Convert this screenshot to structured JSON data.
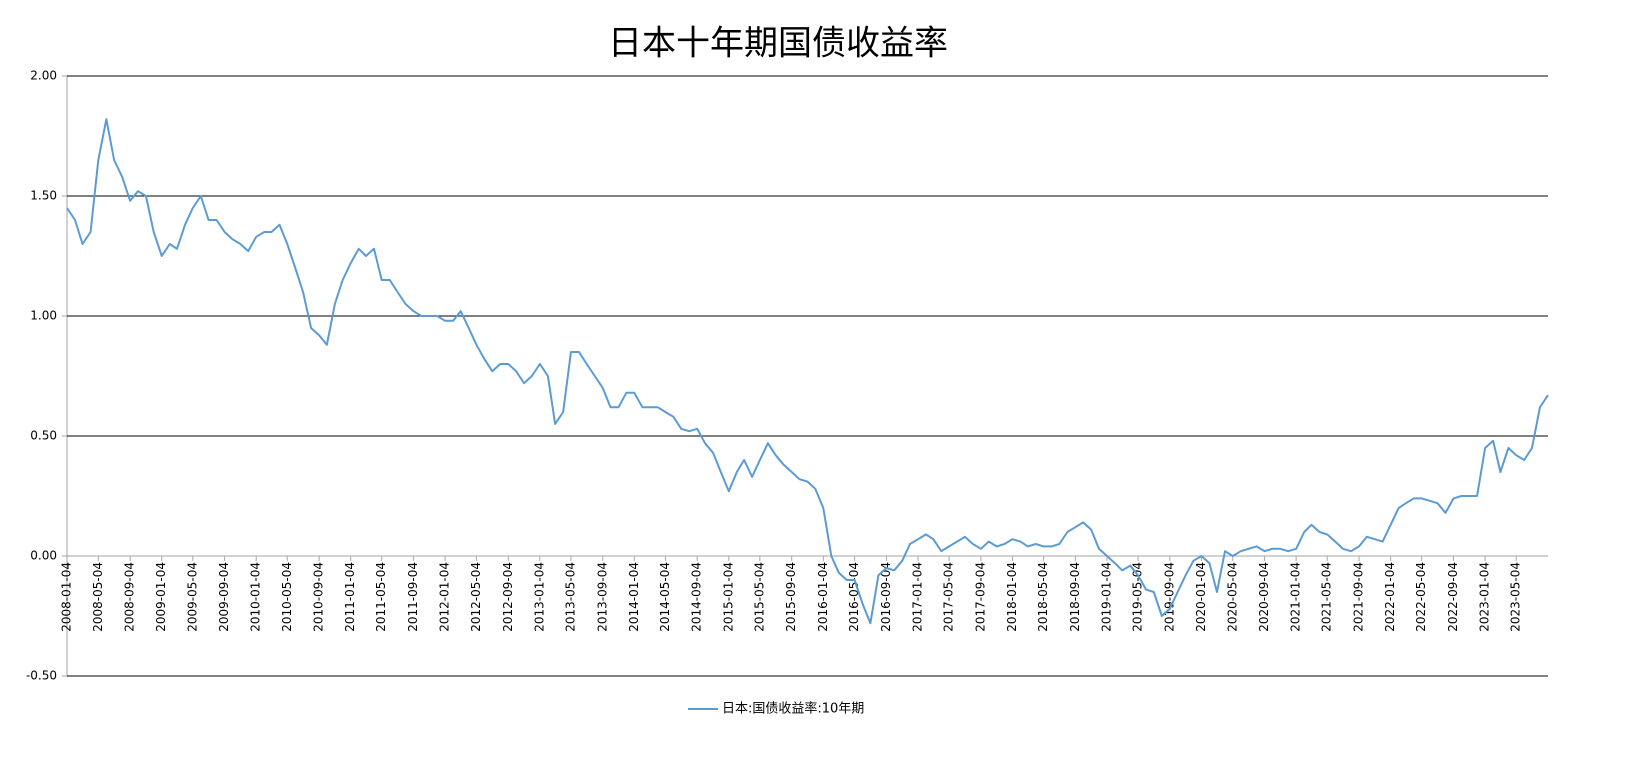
{
  "chart_data": {
    "type": "line",
    "title": "日本十年期国债收益率",
    "x": [
      "2008-01-04",
      "2008-02-04",
      "2008-03-04",
      "2008-04-04",
      "2008-05-04",
      "2008-06-04",
      "2008-07-04",
      "2008-08-04",
      "2008-09-04",
      "2008-10-04",
      "2008-11-04",
      "2008-12-04",
      "2009-01-04",
      "2009-02-04",
      "2009-03-04",
      "2009-04-04",
      "2009-05-04",
      "2009-06-04",
      "2009-07-04",
      "2009-08-04",
      "2009-09-04",
      "2009-10-04",
      "2009-11-04",
      "2009-12-04",
      "2010-01-04",
      "2010-02-04",
      "2010-03-04",
      "2010-04-04",
      "2010-05-04",
      "2010-06-04",
      "2010-07-04",
      "2010-08-04",
      "2010-09-04",
      "2010-10-04",
      "2010-11-04",
      "2010-12-04",
      "2011-01-04",
      "2011-02-04",
      "2011-03-04",
      "2011-04-04",
      "2011-05-04",
      "2011-06-04",
      "2011-07-04",
      "2011-08-04",
      "2011-09-04",
      "2011-10-04",
      "2011-11-04",
      "2011-12-04",
      "2012-01-04",
      "2012-02-04",
      "2012-03-04",
      "2012-04-04",
      "2012-05-04",
      "2012-06-04",
      "2012-07-04",
      "2012-08-04",
      "2012-09-04",
      "2012-10-04",
      "2012-11-04",
      "2012-12-04",
      "2013-01-04",
      "2013-02-04",
      "2013-03-04",
      "2013-04-04",
      "2013-05-04",
      "2013-06-04",
      "2013-07-04",
      "2013-08-04",
      "2013-09-04",
      "2013-10-04",
      "2013-11-04",
      "2013-12-04",
      "2014-01-04",
      "2014-02-04",
      "2014-03-04",
      "2014-04-04",
      "2014-05-04",
      "2014-06-04",
      "2014-07-04",
      "2014-08-04",
      "2014-09-04",
      "2014-10-04",
      "2014-11-04",
      "2014-12-04",
      "2015-01-04",
      "2015-02-04",
      "2015-03-04",
      "2015-04-04",
      "2015-05-04",
      "2015-06-04",
      "2015-07-04",
      "2015-08-04",
      "2015-09-04",
      "2015-10-04",
      "2015-11-04",
      "2015-12-04",
      "2016-01-04",
      "2016-02-04",
      "2016-03-04",
      "2016-04-04",
      "2016-05-04",
      "2016-06-04",
      "2016-07-04",
      "2016-08-04",
      "2016-09-04",
      "2016-10-04",
      "2016-11-04",
      "2016-12-04",
      "2017-01-04",
      "2017-02-04",
      "2017-03-04",
      "2017-04-04",
      "2017-05-04",
      "2017-06-04",
      "2017-07-04",
      "2017-08-04",
      "2017-09-04",
      "2017-10-04",
      "2017-11-04",
      "2017-12-04",
      "2018-01-04",
      "2018-02-04",
      "2018-03-04",
      "2018-04-04",
      "2018-05-04",
      "2018-06-04",
      "2018-07-04",
      "2018-08-04",
      "2018-09-04",
      "2018-10-04",
      "2018-11-04",
      "2018-12-04",
      "2019-01-04",
      "2019-02-04",
      "2019-03-04",
      "2019-04-04",
      "2019-05-04",
      "2019-06-04",
      "2019-07-04",
      "2019-08-04",
      "2019-09-04",
      "2019-10-04",
      "2019-11-04",
      "2019-12-04",
      "2020-01-04",
      "2020-02-04",
      "2020-03-04",
      "2020-04-04",
      "2020-05-04",
      "2020-06-04",
      "2020-07-04",
      "2020-08-04",
      "2020-09-04",
      "2020-10-04",
      "2020-11-04",
      "2020-12-04",
      "2021-01-04",
      "2021-02-04",
      "2021-03-04",
      "2021-04-04",
      "2021-05-04",
      "2021-06-04",
      "2021-07-04",
      "2021-08-04",
      "2021-09-04",
      "2021-10-04",
      "2021-11-04",
      "2021-12-04",
      "2022-01-04",
      "2022-02-04",
      "2022-03-04",
      "2022-04-04",
      "2022-05-04",
      "2022-06-04",
      "2022-07-04",
      "2022-08-04",
      "2022-09-04",
      "2022-10-04",
      "2022-11-04",
      "2022-12-04",
      "2023-01-04",
      "2023-02-04",
      "2023-03-04",
      "2023-04-04",
      "2023-05-04",
      "2023-06-04",
      "2023-07-04",
      "2023-08-04",
      "2023-09-04"
    ],
    "series": [
      {
        "name": "日本:国债收益率:10年期",
        "color": "#5b9bd5",
        "values": [
          1.45,
          1.4,
          1.3,
          1.35,
          1.65,
          1.82,
          1.65,
          1.58,
          1.48,
          1.52,
          1.5,
          1.35,
          1.25,
          1.3,
          1.28,
          1.38,
          1.45,
          1.5,
          1.4,
          1.4,
          1.35,
          1.32,
          1.3,
          1.27,
          1.33,
          1.35,
          1.35,
          1.38,
          1.3,
          1.2,
          1.1,
          0.95,
          0.92,
          0.88,
          1.05,
          1.15,
          1.22,
          1.28,
          1.25,
          1.28,
          1.15,
          1.15,
          1.1,
          1.05,
          1.02,
          1.0,
          1.0,
          1.0,
          0.98,
          0.98,
          1.02,
          0.95,
          0.88,
          0.82,
          0.77,
          0.8,
          0.8,
          0.77,
          0.72,
          0.75,
          0.8,
          0.75,
          0.55,
          0.6,
          0.85,
          0.85,
          0.8,
          0.75,
          0.7,
          0.62,
          0.62,
          0.68,
          0.68,
          0.62,
          0.62,
          0.62,
          0.6,
          0.58,
          0.53,
          0.52,
          0.53,
          0.47,
          0.43,
          0.35,
          0.27,
          0.35,
          0.4,
          0.33,
          0.4,
          0.47,
          0.42,
          0.38,
          0.35,
          0.32,
          0.31,
          0.28,
          0.2,
          0,
          -0.07,
          -0.1,
          -0.1,
          -0.2,
          -0.28,
          -0.08,
          -0.05,
          -0.06,
          -0.02,
          0.05,
          0.07,
          0.09,
          0.07,
          0.02,
          0.04,
          0.06,
          0.08,
          0.05,
          0.03,
          0.06,
          0.04,
          0.05,
          0.07,
          0.06,
          0.04,
          0.05,
          0.04,
          0.04,
          0.05,
          0.1,
          0.12,
          0.14,
          0.11,
          0.03,
          0,
          -0.03,
          -0.06,
          -0.04,
          -0.08,
          -0.14,
          -0.15,
          -0.25,
          -0.22,
          -0.15,
          -0.08,
          -0.02,
          0,
          -0.03,
          -0.15,
          0.02,
          0,
          0.02,
          0.03,
          0.04,
          0.02,
          0.03,
          0.03,
          0.02,
          0.03,
          0.1,
          0.13,
          0.1,
          0.09,
          0.06,
          0.03,
          0.02,
          0.04,
          0.08,
          0.07,
          0.06,
          0.13,
          0.2,
          0.22,
          0.24,
          0.24,
          0.23,
          0.22,
          0.18,
          0.24,
          0.25,
          0.25,
          0.25,
          0.45,
          0.48,
          0.35,
          0.45,
          0.42,
          0.4,
          0.45,
          0.62,
          0.67
        ]
      }
    ],
    "xlim": [
      "2008-01-04",
      "2023-09-04"
    ],
    "xticks": [
      "2008-01-04",
      "2008-05-04",
      "2008-09-04",
      "2009-01-04",
      "2009-05-04",
      "2009-09-04",
      "2010-01-04",
      "2010-05-04",
      "2010-09-04",
      "2011-01-04",
      "2011-05-04",
      "2011-09-04",
      "2012-01-04",
      "2012-05-04",
      "2012-09-04",
      "2013-01-04",
      "2013-05-04",
      "2013-09-04",
      "2014-01-04",
      "2014-05-04",
      "2014-09-04",
      "2015-01-04",
      "2015-05-04",
      "2015-09-04",
      "2016-01-04",
      "2016-05-04",
      "2016-09-04",
      "2017-01-04",
      "2017-05-04",
      "2017-09-04",
      "2018-01-04",
      "2018-05-04",
      "2018-09-04",
      "2019-01-04",
      "2019-05-04",
      "2019-09-04",
      "2020-01-04",
      "2020-05-04",
      "2020-09-04",
      "2021-01-04",
      "2021-05-04",
      "2021-09-04",
      "2022-01-04",
      "2022-05-04",
      "2022-09-04",
      "2023-01-04",
      "2023-05-04"
    ],
    "ylim": [
      -0.5,
      2
    ],
    "yticks": [
      {
        "value": -0.5,
        "label": "-0.50"
      },
      {
        "value": 0,
        "label": "0.00"
      },
      {
        "value": 0.5,
        "label": "0.50"
      },
      {
        "value": 1,
        "label": "1.00"
      },
      {
        "value": 1.5,
        "label": "1.50"
      },
      {
        "value": 2,
        "label": "2.00"
      }
    ],
    "grid": true,
    "legend": "bottom"
  }
}
